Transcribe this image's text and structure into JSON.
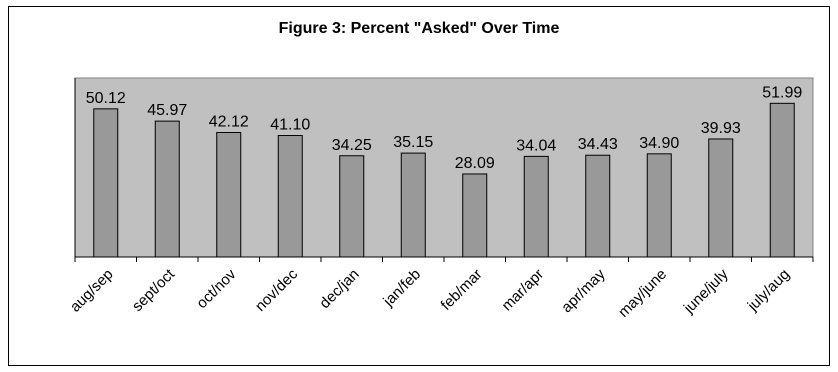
{
  "chart_data": {
    "type": "bar",
    "title": "Figure 3: Percent \"Asked\" Over Time",
    "xlabel": "",
    "ylabel": "",
    "categories": [
      "aug/sep",
      "sept/oct",
      "oct/nov",
      "nov/dec",
      "dec/jan",
      "jan/feb",
      "feb/mar",
      "mar/apr",
      "apr/may",
      "may/june",
      "june/july",
      "july/aug"
    ],
    "values": [
      50.12,
      45.97,
      42.12,
      41.1,
      34.25,
      35.15,
      28.09,
      34.04,
      34.43,
      34.9,
      39.93,
      51.99
    ],
    "value_labels": [
      "50.12",
      "45.97",
      "42.12",
      "41.10",
      "34.25",
      "35.15",
      "28.09",
      "34.04",
      "34.43",
      "34.90",
      "39.93",
      "51.99"
    ],
    "ylim": [
      0,
      60
    ],
    "grid": false,
    "legend": "none",
    "colors": {
      "bar": "#999999",
      "plot_area": "#c0c0c0",
      "border": "#000000"
    }
  }
}
